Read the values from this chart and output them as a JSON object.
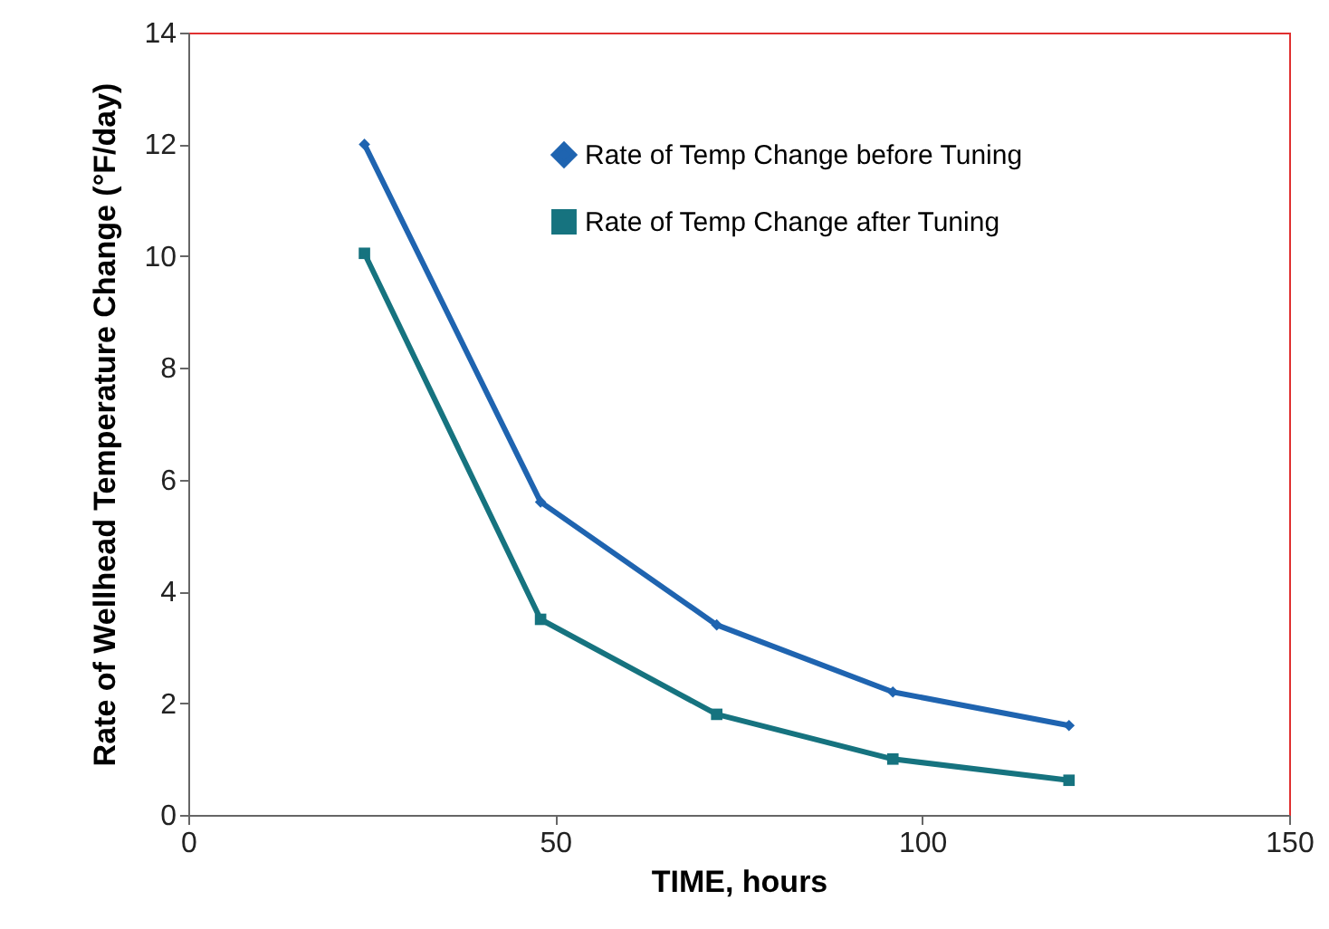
{
  "chart_data": {
    "type": "line",
    "xlabel": "TIME, hours",
    "ylabel": "Rate of Wellhead Temperature Change (°F/day)",
    "x": [
      24,
      48,
      72,
      96,
      120
    ],
    "series": [
      {
        "name": "Rate of Temp Change before Tuning",
        "color": "#1f64b0",
        "marker": "diamond",
        "values": [
          12,
          5.6,
          3.4,
          2.2,
          1.6
        ]
      },
      {
        "name": "Rate of Temp Change after Tuning",
        "color": "#16737f",
        "marker": "square",
        "values": [
          10.05,
          3.5,
          1.8,
          1.0,
          0.62
        ]
      }
    ],
    "xlim": [
      0,
      150
    ],
    "xticks": [
      0,
      50,
      100,
      150
    ],
    "ylim": [
      0,
      14
    ],
    "yticks": [
      0,
      2,
      4,
      6,
      8,
      10,
      12,
      14
    ],
    "grid": false,
    "legend": "top right",
    "line_style": "solid"
  }
}
